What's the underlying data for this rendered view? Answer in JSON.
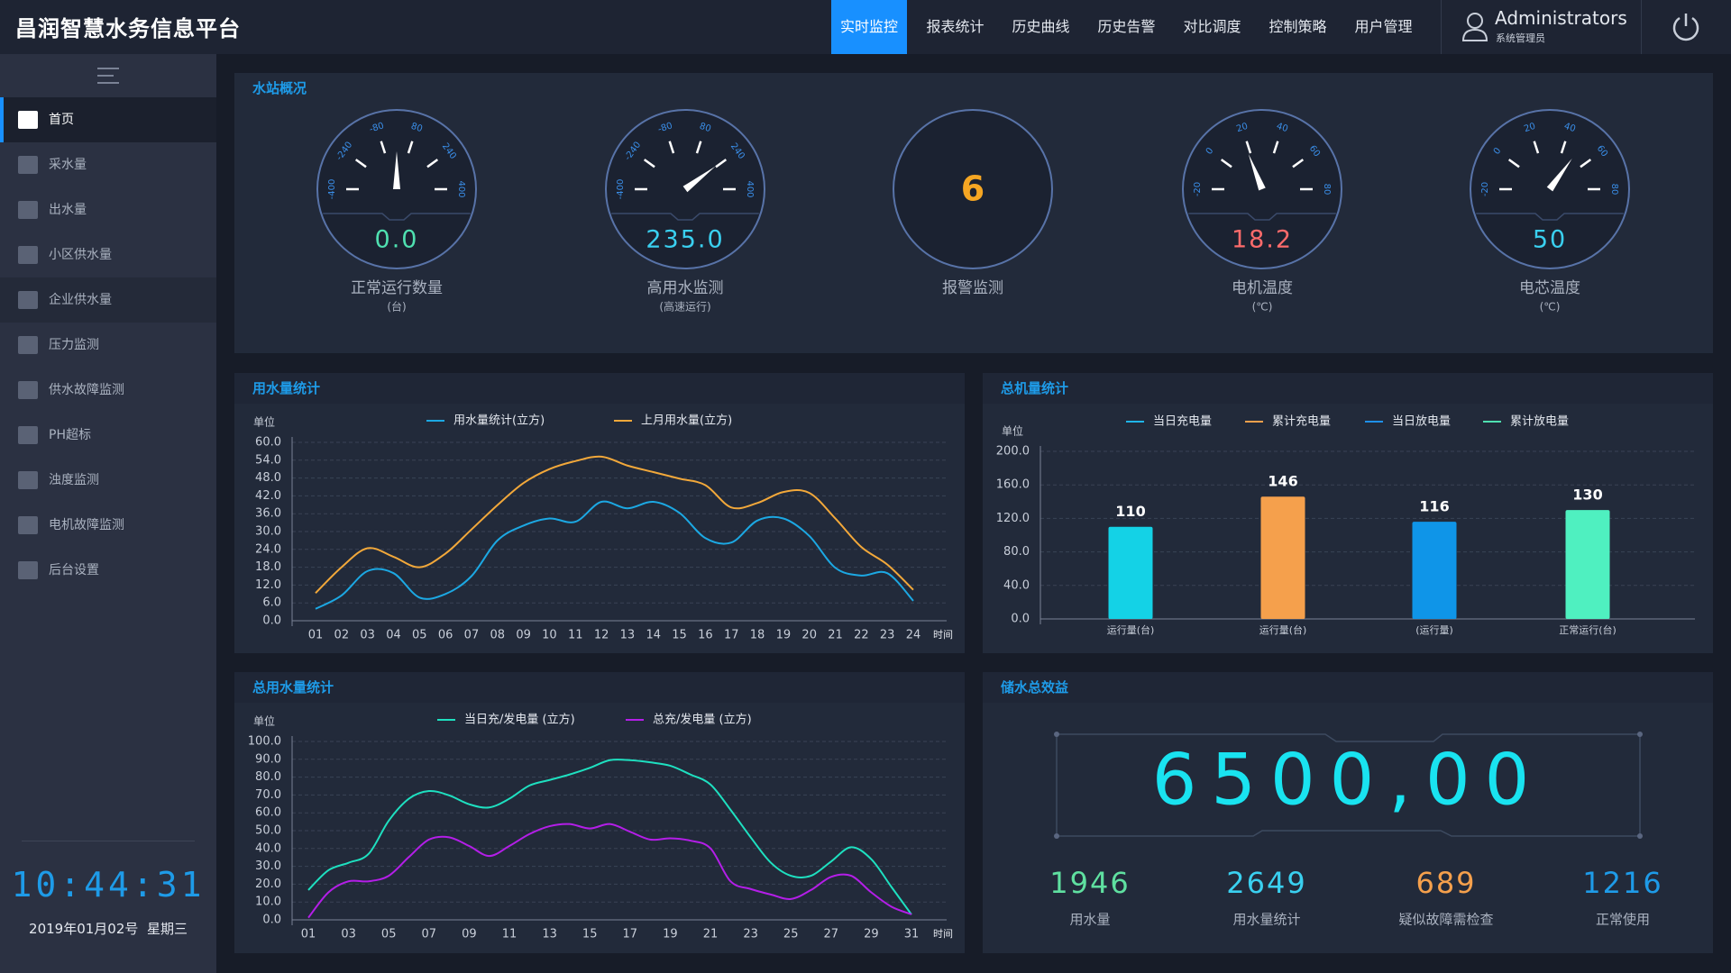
{
  "header": {
    "title": "昌润智慧水务信息平台",
    "nav": [
      "实时监控",
      "报表统计",
      "历史曲线",
      "历史告警",
      "对比调度",
      "控制策略",
      "用户管理"
    ],
    "nav_active": 0,
    "user": "Administrators",
    "role": "系统管理员"
  },
  "sidebar": {
    "items": [
      "首页",
      "采水量",
      "出水量",
      "小区供水量",
      "企业供水量",
      "压力监测",
      "供水故障监测",
      "PH超标",
      "浊度监测",
      "电机故障监测",
      "后台设置"
    ],
    "active": 0,
    "hover": 4,
    "time": "10:44:31",
    "date": "2019年01月02号",
    "weekday": "星期三"
  },
  "overview": {
    "title": "水站概况",
    "gauges": [
      {
        "label": "正常运行数量",
        "sublabel": "(台)",
        "value": 0,
        "value_label": "0.0",
        "color": "#4fe0b0",
        "ticks": [
          -400,
          -240,
          -80,
          80,
          240,
          400
        ]
      },
      {
        "label": "高用水监测",
        "sublabel": "(高速运行)",
        "value": 235,
        "value_label": "235.0",
        "color": "#3ad0f0",
        "ticks": [
          -400,
          -240,
          -80,
          80,
          240,
          400
        ]
      },
      {
        "label": "报警监测",
        "value": 6,
        "color": "#f5a623"
      },
      {
        "label": "电机温度",
        "sublabel": "(℃)",
        "value": 18.2,
        "color": "#ff6b6b",
        "ticks": [
          -20,
          0,
          20,
          40,
          60,
          80
        ]
      },
      {
        "label": "电芯温度",
        "sublabel": "(℃)",
        "value": 50,
        "color": "#3ad0f0",
        "ticks": [
          -20,
          0,
          20,
          40,
          60,
          80
        ]
      }
    ]
  },
  "chart_data": [
    {
      "type": "line",
      "title": "用水量统计",
      "unit": "单位",
      "x_label": "时间",
      "categories": [
        "01",
        "02",
        "03",
        "04",
        "05",
        "06",
        "07",
        "08",
        "09",
        "10",
        "11",
        "12",
        "13",
        "14",
        "15",
        "16",
        "17",
        "18",
        "19",
        "20",
        "21",
        "22",
        "23",
        "24"
      ],
      "series": [
        {
          "name": "用水量统计(立方)",
          "color": "#1ca8e3",
          "values": [
            4,
            8.5,
            16.7,
            16,
            7.8,
            9,
            15,
            27,
            32,
            34.4,
            33.3,
            40,
            37.8,
            40,
            36.3,
            27.8,
            26.3,
            33.7,
            34.4,
            28.5,
            17.8,
            15.2,
            16,
            6.7
          ]
        },
        {
          "name": "上月用水量(立方)",
          "color": "#f2a83a",
          "values": [
            9.3,
            18,
            24.4,
            21.5,
            18,
            22.6,
            30.7,
            38.9,
            46.3,
            51,
            53.7,
            55.2,
            52.2,
            50,
            47.8,
            45.6,
            38.1,
            39.6,
            43.3,
            43,
            34.4,
            24.8,
            18.9,
            10.4
          ]
        }
      ],
      "ylim": [
        0,
        60
      ],
      "yticks": [
        {
          "value": 0,
          "label": "0.0"
        },
        {
          "value": 6,
          "label": "6.0"
        },
        {
          "value": 12,
          "label": "12.0"
        },
        {
          "value": 18,
          "label": "18.0"
        },
        {
          "value": 24,
          "label": "24.0"
        },
        {
          "value": 30,
          "label": "30.0"
        },
        {
          "value": 36,
          "label": "36.0"
        },
        {
          "value": 42,
          "label": "42.0"
        },
        {
          "value": 48,
          "label": "48.0"
        },
        {
          "value": 54,
          "label": "54.0"
        },
        {
          "value": 60,
          "label": "60.0"
        }
      ],
      "grid": true
    },
    {
      "type": "bar",
      "title": "总机量统计",
      "unit": "单位",
      "categories": [
        "运行量(台)",
        "运行量(台)",
        "(运行量)",
        "正常运行(台)"
      ],
      "values": [
        110,
        146,
        116,
        130
      ],
      "colors": [
        "#14d2e6",
        "#f5a04c",
        "#0f95e8",
        "#4ff0c0"
      ],
      "legend": [
        {
          "name": "当日充电量",
          "color": "#1fb5e8"
        },
        {
          "name": "累计充电量",
          "color": "#f5a04c"
        },
        {
          "name": "当日放电量",
          "color": "#1e90e8"
        },
        {
          "name": "累计放电量",
          "color": "#4fe0b0"
        }
      ],
      "ylim": [
        0,
        200
      ],
      "yticks": [
        {
          "value": 0,
          "label": "0.0"
        },
        {
          "value": 40,
          "label": "40.0"
        },
        {
          "value": 80,
          "label": "80.0"
        },
        {
          "value": 120,
          "label": "120.0"
        },
        {
          "value": 160,
          "label": "160.0"
        },
        {
          "value": 200,
          "label": "200.0"
        }
      ],
      "grid": true
    },
    {
      "type": "line",
      "title": "总用水量统计",
      "unit": "单位",
      "x_label": "时间",
      "categories": [
        "01",
        null,
        "03",
        null,
        "05",
        null,
        "07",
        null,
        "09",
        null,
        "11",
        null,
        "13",
        null,
        "15",
        null,
        "17",
        null,
        "19",
        null,
        "21",
        null,
        "23",
        null,
        "25",
        null,
        "27",
        null,
        "29",
        null,
        "31"
      ],
      "series": [
        {
          "name": "当日充/发电量 (立方)",
          "color": "#1ee0c0",
          "values": [
            16.7,
            27.8,
            32,
            37,
            55.6,
            67.9,
            72.2,
            69.8,
            64.8,
            63,
            67.9,
            75.3,
            78.4,
            81.5,
            85.2,
            89.5,
            89.5,
            88.3,
            86.4,
            81.5,
            75.9,
            61.7,
            46.3,
            32.1,
            24.7,
            24.7,
            32.7,
            40.7,
            34,
            18.5,
            3
          ]
        },
        {
          "name": "总充/发电量 (立方)",
          "color": "#b41ee8",
          "values": [
            1.2,
            15.4,
            21.6,
            21.6,
            24.7,
            35.2,
            45,
            46.3,
            41.4,
            35.8,
            41.4,
            48.1,
            52.5,
            53.7,
            51.2,
            53.7,
            49.4,
            45,
            45.7,
            44.4,
            40.1,
            21.6,
            17.3,
            14.2,
            11.7,
            16.7,
            24.1,
            24.7,
            15.4,
            7.4,
            3.1
          ]
        }
      ],
      "ylim": [
        0,
        100
      ],
      "yticks": [
        {
          "value": 0,
          "label": "0.0"
        },
        {
          "value": 10,
          "label": "10.0"
        },
        {
          "value": 20,
          "label": "20.0"
        },
        {
          "value": 30,
          "label": "30.0"
        },
        {
          "value": 40,
          "label": "40.0"
        },
        {
          "value": 50,
          "label": "50.0"
        },
        {
          "value": 60,
          "label": "60.0"
        },
        {
          "value": 70,
          "label": "70.0"
        },
        {
          "value": 80,
          "label": "80.0"
        },
        {
          "value": 90,
          "label": "90.0"
        },
        {
          "value": 100,
          "label": "100.0"
        }
      ],
      "grid": true
    }
  ],
  "benefit": {
    "title": "储水总效益",
    "total": "6500,00",
    "stats": [
      {
        "value": "1946",
        "label": "用水量",
        "color": "#5fe0a0"
      },
      {
        "value": "2649",
        "label": "用水量统计",
        "color": "#3ad0f0"
      },
      {
        "value": "689",
        "label": "疑似故障需检查",
        "color": "#f5a04c"
      },
      {
        "value": "1216",
        "label": "正常使用",
        "color": "#1e9be8"
      }
    ]
  }
}
